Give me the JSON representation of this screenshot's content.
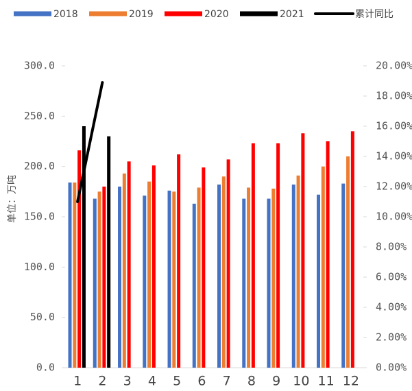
{
  "chart_data": {
    "type": "bar",
    "y_label": "单位：万吨",
    "categories": [
      "1",
      "2",
      "3",
      "4",
      "5",
      "6",
      "7",
      "8",
      "9",
      "10",
      "11",
      "12"
    ],
    "series": [
      {
        "name": "2018",
        "color": "#4472c4",
        "values": [
          184,
          168,
          180,
          171,
          176,
          163,
          182,
          168,
          168,
          182,
          172,
          183
        ]
      },
      {
        "name": "2019",
        "color": "#ed7d31",
        "values": [
          184,
          175,
          193,
          185,
          175,
          179,
          190,
          179,
          178,
          191,
          200,
          210
        ]
      },
      {
        "name": "2020",
        "color": "#ff0000",
        "values": [
          216,
          180,
          205,
          201,
          212,
          199,
          207,
          223,
          223,
          233,
          225,
          235
        ]
      },
      {
        "name": "2021",
        "color": "#000000",
        "values": [
          240,
          230,
          null,
          null,
          null,
          null,
          null,
          null,
          null,
          null,
          null,
          null
        ]
      },
      {
        "name": "累计同比",
        "color": "#000000",
        "type": "line",
        "axis": "y2",
        "values": [
          11.0,
          18.9,
          null,
          null,
          null,
          null,
          null,
          null,
          null,
          null,
          null,
          null
        ]
      }
    ],
    "ylim": [
      0,
      300
    ],
    "yticks": [
      {
        "value": 0,
        "label": "0.0"
      },
      {
        "value": 50,
        "label": "50.0"
      },
      {
        "value": 100,
        "label": "100.0"
      },
      {
        "value": 150,
        "label": "150.0"
      },
      {
        "value": 200,
        "label": "200.0"
      },
      {
        "value": 250,
        "label": "250.0"
      },
      {
        "value": 300,
        "label": "300.0"
      }
    ],
    "y2lim": [
      0,
      20
    ],
    "y2ticks": [
      {
        "value": 0,
        "label": "0.00%"
      },
      {
        "value": 2,
        "label": "2.00%"
      },
      {
        "value": 4,
        "label": "4.00%"
      },
      {
        "value": 6,
        "label": "6.00%"
      },
      {
        "value": 8,
        "label": "8.00%"
      },
      {
        "value": 10,
        "label": "10.00%"
      },
      {
        "value": 12,
        "label": "12.00%"
      },
      {
        "value": 14,
        "label": "14.00%"
      },
      {
        "value": 16,
        "label": "16.00%"
      },
      {
        "value": 18,
        "label": "18.00%"
      },
      {
        "value": 20,
        "label": "20.00%"
      }
    ],
    "legend": "top"
  }
}
